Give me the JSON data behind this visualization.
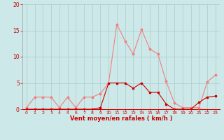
{
  "hours": [
    0,
    1,
    2,
    3,
    4,
    5,
    6,
    7,
    8,
    9,
    10,
    11,
    12,
    13,
    14,
    15,
    16,
    17,
    18,
    19,
    20,
    21,
    22,
    23
  ],
  "rafales": [
    0.3,
    2.3,
    2.3,
    2.3,
    0.3,
    2.3,
    0.3,
    2.3,
    2.3,
    3.0,
    5.0,
    16.2,
    13.0,
    10.5,
    15.2,
    11.5,
    10.5,
    5.3,
    1.2,
    0.3,
    0.3,
    0.3,
    5.2,
    6.5
  ],
  "moyen": [
    0,
    0,
    0,
    0,
    0,
    0,
    0,
    0,
    0,
    0.3,
    5.0,
    5.0,
    5.0,
    4.0,
    5.0,
    3.2,
    3.2,
    1.0,
    0,
    0,
    0,
    1.3,
    2.3,
    2.5
  ],
  "rafales_color": "#f08080",
  "moyen_color": "#cc0000",
  "bg_color": "#cce8e8",
  "grid_color": "#aacccc",
  "xlabel": "Vent moyen/en rafales ( km/h )",
  "ylim": [
    0,
    20
  ],
  "yticks": [
    0,
    5,
    10,
    15,
    20
  ],
  "xticks": [
    0,
    1,
    2,
    3,
    4,
    5,
    6,
    7,
    8,
    9,
    10,
    11,
    12,
    13,
    14,
    15,
    16,
    17,
    18,
    19,
    20,
    21,
    22,
    23
  ]
}
